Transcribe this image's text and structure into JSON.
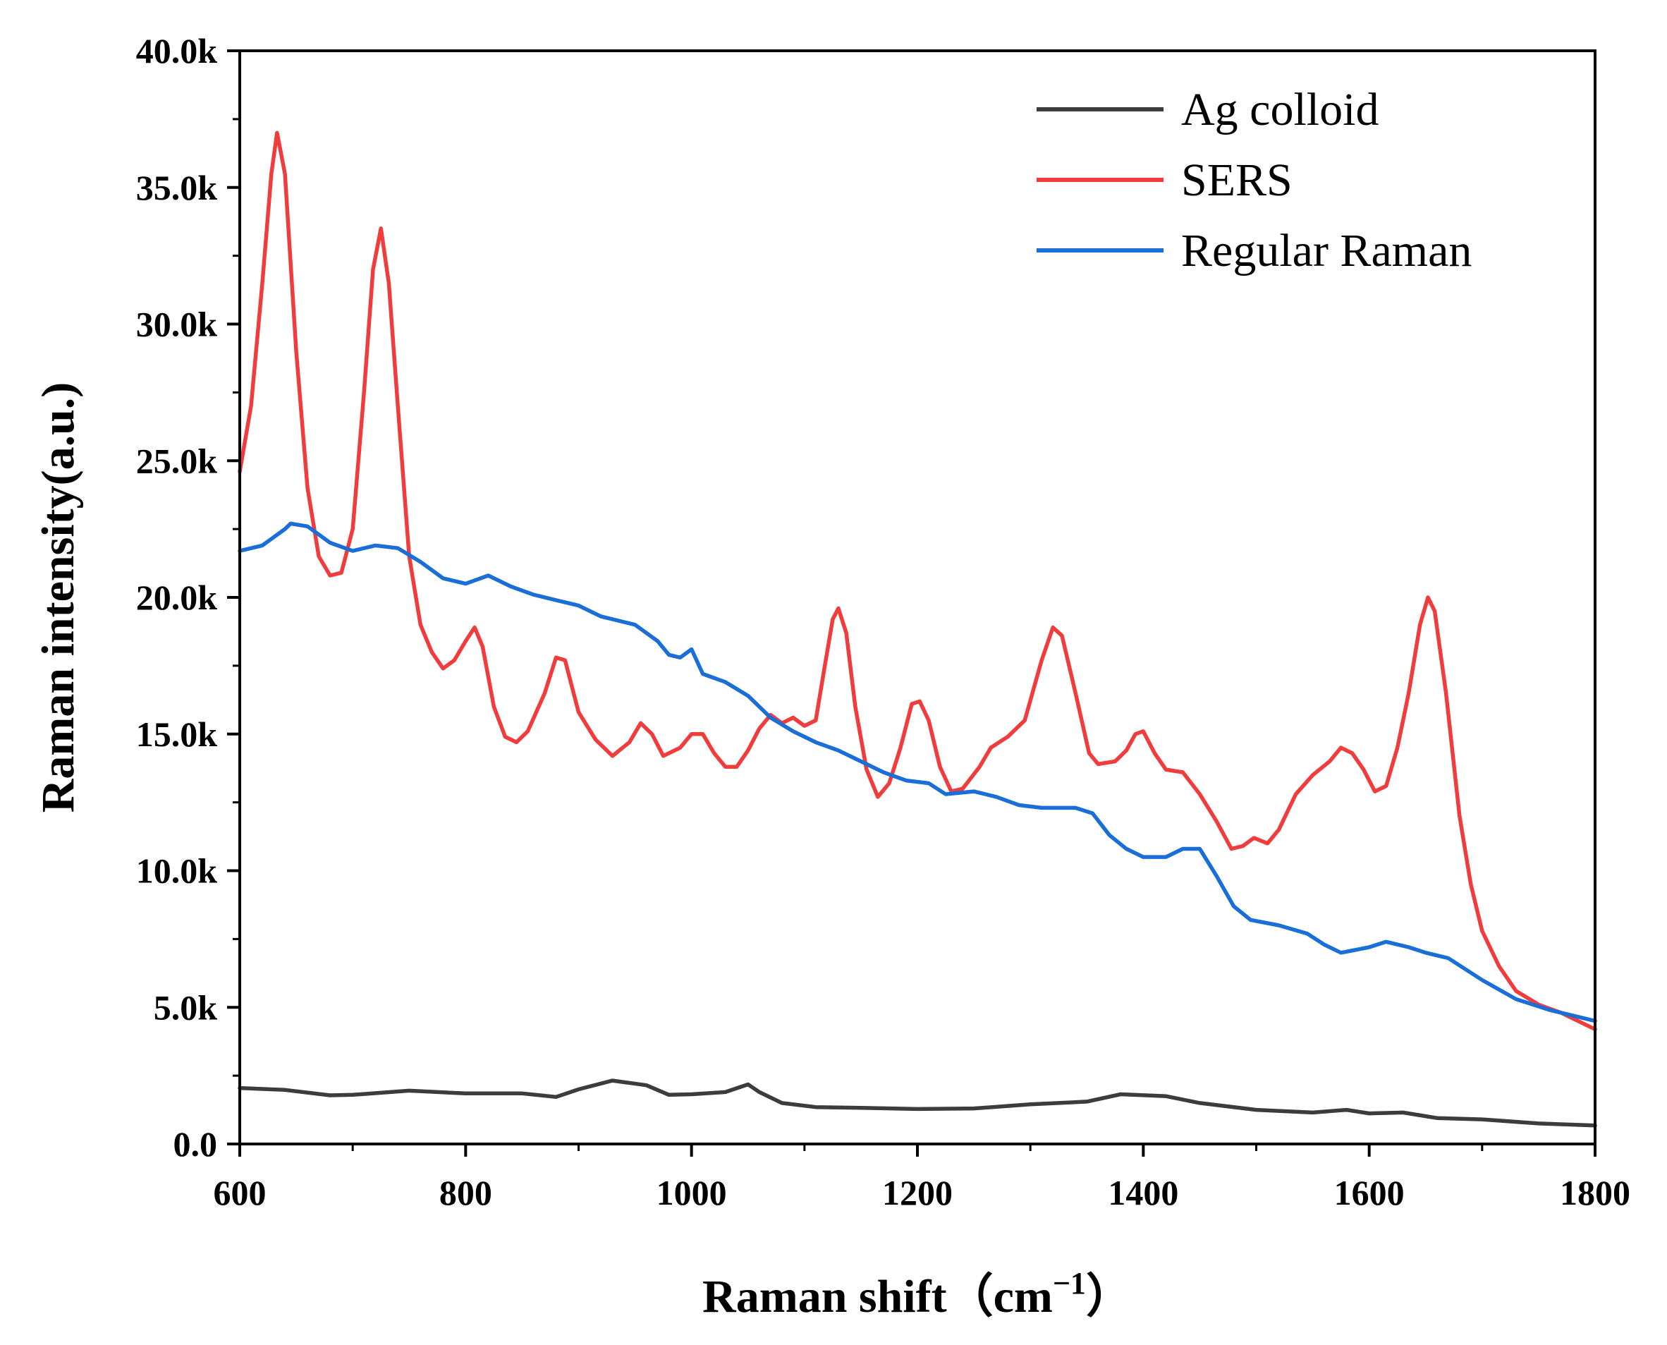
{
  "chart_data": {
    "type": "line",
    "title": "",
    "xlabel": "Raman shift（cm",
    "xlabel_sup": "−1",
    "xlabel_close": "）",
    "ylabel": "Raman intensity(a.u.)",
    "xlim": [
      600,
      1800
    ],
    "ylim": [
      0,
      40000
    ],
    "x_ticks": [
      {
        "value": 600,
        "label": "600"
      },
      {
        "value": 800,
        "label": "800"
      },
      {
        "value": 1000,
        "label": "1000"
      },
      {
        "value": 1200,
        "label": "1200"
      },
      {
        "value": 1400,
        "label": "1400"
      },
      {
        "value": 1600,
        "label": "1600"
      },
      {
        "value": 1800,
        "label": "1800"
      }
    ],
    "y_ticks": [
      {
        "value": 0,
        "label": "0.0"
      },
      {
        "value": 5000,
        "label": "5.0k"
      },
      {
        "value": 10000,
        "label": "10.0k"
      },
      {
        "value": 15000,
        "label": "15.0k"
      },
      {
        "value": 20000,
        "label": "20.0k"
      },
      {
        "value": 25000,
        "label": "25.0k"
      },
      {
        "value": 30000,
        "label": "30.0k"
      },
      {
        "value": 35000,
        "label": "35.0k"
      },
      {
        "value": 40000,
        "label": "40.0k"
      }
    ],
    "legend_position": "top-right",
    "series": [
      {
        "name": "Ag colloid",
        "color": "#3c3c3c",
        "points": [
          [
            600,
            2050
          ],
          [
            640,
            1980
          ],
          [
            680,
            1780
          ],
          [
            700,
            1800
          ],
          [
            750,
            1950
          ],
          [
            800,
            1850
          ],
          [
            850,
            1850
          ],
          [
            880,
            1720
          ],
          [
            900,
            2000
          ],
          [
            930,
            2320
          ],
          [
            960,
            2150
          ],
          [
            980,
            1800
          ],
          [
            1000,
            1820
          ],
          [
            1030,
            1900
          ],
          [
            1050,
            2180
          ],
          [
            1060,
            1900
          ],
          [
            1080,
            1500
          ],
          [
            1110,
            1350
          ],
          [
            1150,
            1320
          ],
          [
            1200,
            1280
          ],
          [
            1250,
            1300
          ],
          [
            1300,
            1450
          ],
          [
            1350,
            1550
          ],
          [
            1380,
            1820
          ],
          [
            1420,
            1750
          ],
          [
            1450,
            1500
          ],
          [
            1500,
            1250
          ],
          [
            1550,
            1150
          ],
          [
            1580,
            1250
          ],
          [
            1600,
            1120
          ],
          [
            1630,
            1150
          ],
          [
            1660,
            950
          ],
          [
            1700,
            900
          ],
          [
            1750,
            750
          ],
          [
            1800,
            680
          ]
        ]
      },
      {
        "name": "SERS",
        "color": "#f03c3c",
        "points": [
          [
            600,
            24600
          ],
          [
            610,
            27000
          ],
          [
            620,
            31500
          ],
          [
            628,
            35500
          ],
          [
            633,
            37000
          ],
          [
            640,
            35500
          ],
          [
            650,
            29000
          ],
          [
            660,
            24000
          ],
          [
            670,
            21500
          ],
          [
            680,
            20800
          ],
          [
            690,
            20900
          ],
          [
            700,
            22500
          ],
          [
            710,
            27500
          ],
          [
            718,
            32000
          ],
          [
            725,
            33500
          ],
          [
            732,
            31500
          ],
          [
            740,
            27000
          ],
          [
            750,
            21500
          ],
          [
            760,
            19000
          ],
          [
            770,
            18000
          ],
          [
            780,
            17400
          ],
          [
            790,
            17700
          ],
          [
            800,
            18400
          ],
          [
            808,
            18900
          ],
          [
            815,
            18200
          ],
          [
            825,
            16000
          ],
          [
            835,
            14900
          ],
          [
            845,
            14700
          ],
          [
            855,
            15100
          ],
          [
            870,
            16500
          ],
          [
            880,
            17800
          ],
          [
            888,
            17700
          ],
          [
            900,
            15800
          ],
          [
            915,
            14800
          ],
          [
            930,
            14200
          ],
          [
            945,
            14700
          ],
          [
            955,
            15400
          ],
          [
            965,
            15000
          ],
          [
            975,
            14200
          ],
          [
            990,
            14500
          ],
          [
            1000,
            15000
          ],
          [
            1010,
            15000
          ],
          [
            1020,
            14300
          ],
          [
            1030,
            13800
          ],
          [
            1040,
            13800
          ],
          [
            1050,
            14400
          ],
          [
            1060,
            15200
          ],
          [
            1070,
            15700
          ],
          [
            1080,
            15400
          ],
          [
            1090,
            15600
          ],
          [
            1100,
            15300
          ],
          [
            1110,
            15500
          ],
          [
            1118,
            17500
          ],
          [
            1125,
            19200
          ],
          [
            1130,
            19600
          ],
          [
            1137,
            18700
          ],
          [
            1145,
            16000
          ],
          [
            1155,
            13700
          ],
          [
            1165,
            12700
          ],
          [
            1175,
            13200
          ],
          [
            1185,
            14500
          ],
          [
            1195,
            16100
          ],
          [
            1202,
            16200
          ],
          [
            1210,
            15500
          ],
          [
            1220,
            13800
          ],
          [
            1230,
            12900
          ],
          [
            1240,
            13000
          ],
          [
            1255,
            13800
          ],
          [
            1265,
            14500
          ],
          [
            1280,
            14900
          ],
          [
            1295,
            15500
          ],
          [
            1310,
            17700
          ],
          [
            1320,
            18900
          ],
          [
            1328,
            18600
          ],
          [
            1340,
            16500
          ],
          [
            1352,
            14300
          ],
          [
            1360,
            13900
          ],
          [
            1375,
            14000
          ],
          [
            1385,
            14400
          ],
          [
            1393,
            15000
          ],
          [
            1400,
            15100
          ],
          [
            1410,
            14300
          ],
          [
            1420,
            13700
          ],
          [
            1435,
            13600
          ],
          [
            1450,
            12800
          ],
          [
            1465,
            11800
          ],
          [
            1478,
            10800
          ],
          [
            1488,
            10900
          ],
          [
            1498,
            11200
          ],
          [
            1510,
            11000
          ],
          [
            1520,
            11500
          ],
          [
            1535,
            12800
          ],
          [
            1550,
            13500
          ],
          [
            1565,
            14000
          ],
          [
            1575,
            14500
          ],
          [
            1585,
            14300
          ],
          [
            1595,
            13700
          ],
          [
            1605,
            12900
          ],
          [
            1615,
            13100
          ],
          [
            1625,
            14500
          ],
          [
            1635,
            16500
          ],
          [
            1645,
            19000
          ],
          [
            1652,
            20000
          ],
          [
            1658,
            19500
          ],
          [
            1668,
            16500
          ],
          [
            1680,
            12000
          ],
          [
            1690,
            9500
          ],
          [
            1700,
            7800
          ],
          [
            1715,
            6500
          ],
          [
            1730,
            5600
          ],
          [
            1750,
            5100
          ],
          [
            1770,
            4800
          ],
          [
            1800,
            4200
          ]
        ]
      },
      {
        "name": "Regular Raman",
        "color": "#1a6ed8",
        "points": [
          [
            600,
            21700
          ],
          [
            620,
            21900
          ],
          [
            640,
            22500
          ],
          [
            645,
            22700
          ],
          [
            660,
            22600
          ],
          [
            680,
            22000
          ],
          [
            700,
            21700
          ],
          [
            720,
            21900
          ],
          [
            740,
            21800
          ],
          [
            760,
            21300
          ],
          [
            780,
            20700
          ],
          [
            800,
            20500
          ],
          [
            820,
            20800
          ],
          [
            840,
            20400
          ],
          [
            860,
            20100
          ],
          [
            880,
            19900
          ],
          [
            900,
            19700
          ],
          [
            920,
            19300
          ],
          [
            950,
            19000
          ],
          [
            970,
            18400
          ],
          [
            980,
            17900
          ],
          [
            990,
            17800
          ],
          [
            1000,
            18100
          ],
          [
            1010,
            17200
          ],
          [
            1030,
            16900
          ],
          [
            1050,
            16400
          ],
          [
            1070,
            15600
          ],
          [
            1090,
            15100
          ],
          [
            1110,
            14700
          ],
          [
            1130,
            14400
          ],
          [
            1150,
            14000
          ],
          [
            1170,
            13600
          ],
          [
            1190,
            13300
          ],
          [
            1210,
            13200
          ],
          [
            1225,
            12800
          ],
          [
            1250,
            12900
          ],
          [
            1270,
            12700
          ],
          [
            1290,
            12400
          ],
          [
            1310,
            12300
          ],
          [
            1340,
            12300
          ],
          [
            1355,
            12100
          ],
          [
            1370,
            11300
          ],
          [
            1385,
            10800
          ],
          [
            1400,
            10500
          ],
          [
            1420,
            10500
          ],
          [
            1435,
            10800
          ],
          [
            1450,
            10800
          ],
          [
            1465,
            9800
          ],
          [
            1480,
            8700
          ],
          [
            1495,
            8200
          ],
          [
            1520,
            8000
          ],
          [
            1545,
            7700
          ],
          [
            1560,
            7300
          ],
          [
            1575,
            7000
          ],
          [
            1600,
            7200
          ],
          [
            1615,
            7400
          ],
          [
            1635,
            7200
          ],
          [
            1650,
            7000
          ],
          [
            1670,
            6800
          ],
          [
            1700,
            6000
          ],
          [
            1730,
            5300
          ],
          [
            1760,
            4900
          ],
          [
            1800,
            4500
          ]
        ]
      }
    ]
  }
}
